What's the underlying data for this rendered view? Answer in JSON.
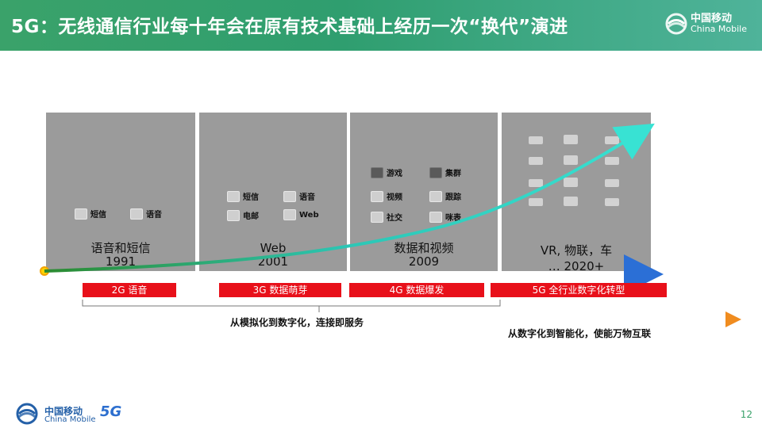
{
  "header": {
    "title": "5G：无线通信行业每十年会在原有技术基础上经历一次“换代”演进",
    "brand_cn": "中国移动",
    "brand_en": "China Mobile"
  },
  "panels": [
    {
      "title": "语音和短信",
      "year": "1991",
      "services": [
        {
          "label": "短信",
          "icon": "sms-icon"
        },
        {
          "label": "语音",
          "icon": "phone-icon"
        }
      ]
    },
    {
      "title": "Web",
      "year": "2001",
      "services": [
        {
          "label": "短信",
          "icon": "sms-icon"
        },
        {
          "label": "语音",
          "icon": "phone-icon"
        },
        {
          "label": "电邮",
          "icon": "mail-icon"
        },
        {
          "label": "Web",
          "icon": "web-icon"
        }
      ]
    },
    {
      "title": "数据和视频",
      "year": "2009",
      "services": [
        {
          "label": "游戏",
          "icon": "game-icon"
        },
        {
          "label": "集群",
          "icon": "cluster-icon"
        },
        {
          "label": "视频",
          "icon": "video-icon"
        },
        {
          "label": "跟踪",
          "icon": "tracking-icon"
        },
        {
          "label": "社交",
          "icon": "social-icon"
        },
        {
          "label": "咪表",
          "icon": "meter-icon"
        }
      ]
    },
    {
      "title": "VR, 物联，车",
      "year": "… 2020+",
      "services": []
    }
  ],
  "timeline_tags": [
    {
      "label": "2G 语音"
    },
    {
      "label": "3G 数据萌芽"
    },
    {
      "label": "4G 数据爆发"
    },
    {
      "label": "5G 全行业数字化转型"
    }
  ],
  "notes": {
    "left": "从模拟化到数字化，连接即服务",
    "right": "从数字化到智能化，使能万物互联"
  },
  "footer": {
    "brand_cn": "中国移动",
    "brand_en": "China Mobile",
    "badge": "5G",
    "page": "12"
  },
  "colors": {
    "header_green": "#3aa26a",
    "panel_gray": "#9b9b9b",
    "tag_red": "#e8101a",
    "blue_arrow": "#2b6fd6",
    "curve_teal": "#28d8c9",
    "orange_line": "#f3a650"
  }
}
